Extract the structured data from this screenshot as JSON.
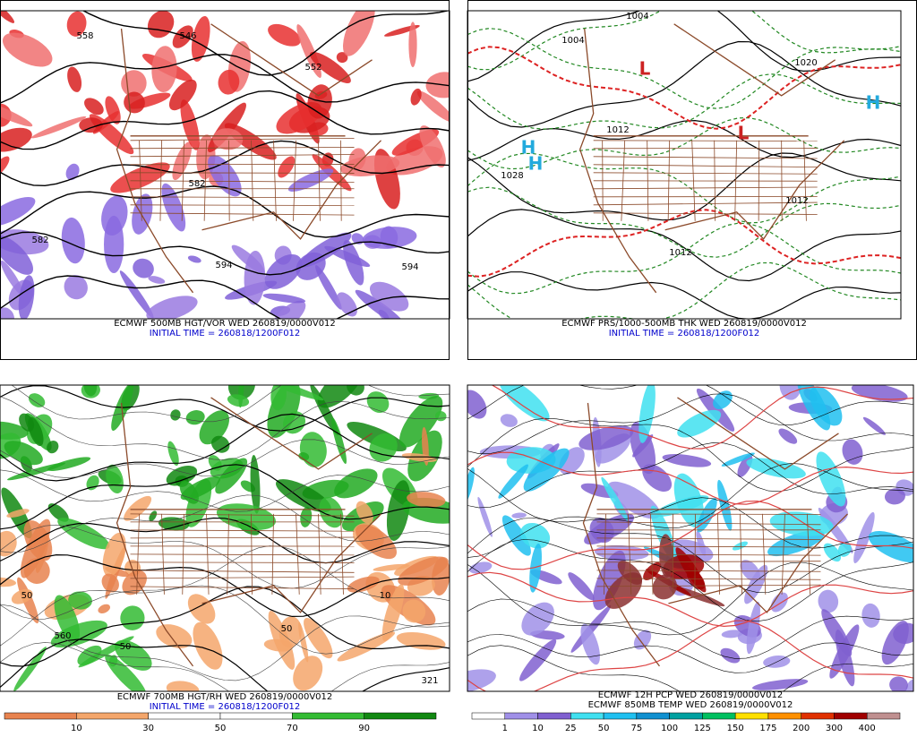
{
  "panels": [
    {
      "captions": [
        "ECMWF 500MB HGT/VOR WED 260819/0000V012",
        "INITIAL TIME = 260818/1200F012"
      ],
      "contour_labels": [
        "558",
        "546",
        "552",
        "582",
        "582",
        "594",
        "594"
      ]
    },
    {
      "captions": [
        "ECMWF PRS/1000-500MB THK WED 260819/0000V012",
        "INITIAL TIME = 260818/1200F012"
      ],
      "contour_labels": [
        "1004",
        "1004",
        "1012",
        "1028",
        "1012",
        "1012",
        "1020",
        "H",
        "H",
        "L",
        "L",
        "H"
      ]
    },
    {
      "captions": [
        "ECMWF 700MB HGT/RH WED 260819/0000V012",
        "INITIAL TIME = 260818/1200F012"
      ],
      "contour_labels": [
        "50",
        "50",
        "50",
        "10",
        "560",
        "321"
      ],
      "legend": {
        "labels": [
          "10",
          "30",
          "50",
          "70",
          "90"
        ],
        "colors": [
          "#e8834f",
          "#f4a66b",
          "#ffffff",
          "#ffffff",
          "#33bb33",
          "#118811"
        ]
      }
    },
    {
      "captions": [
        "ECMWF 12H PCP WED 260819/0000V012",
        "ECMWF 850MB TEMP WED 260819/0000V012"
      ],
      "contour_labels": [],
      "legend": {
        "labels": [
          "1",
          "10",
          "25",
          "50",
          "75",
          "100",
          "125",
          "150",
          "175",
          "200",
          "300",
          "400"
        ],
        "colors": [
          "#ffffff",
          "#a090e8",
          "#8060d0",
          "#40e0f0",
          "#20c0f0",
          "#1090d0",
          "#00a0a0",
          "#00c060",
          "#ffe000",
          "#ff9000",
          "#e03000",
          "#a00000",
          "#c09090"
        ]
      }
    }
  ]
}
